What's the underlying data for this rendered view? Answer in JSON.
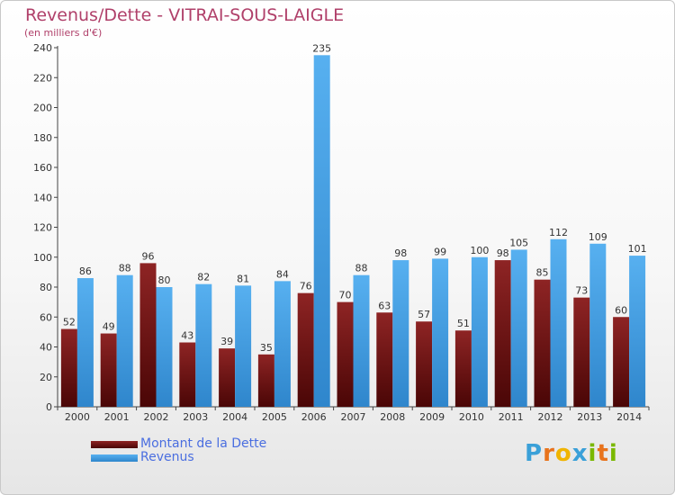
{
  "title": "Revenus/Dette - VITRAI-SOUS-LAIGLE",
  "subtitle": "(en milliers d'€)",
  "legend": {
    "items": [
      {
        "label": "Montant de la Dette",
        "color": "#7a1a1a"
      },
      {
        "label": "Revenus",
        "color": "#4aa3e6"
      }
    ]
  },
  "logo": {
    "letters": [
      {
        "char": "P",
        "color": "#3aa0d8"
      },
      {
        "char": "r",
        "color": "#e8731c"
      },
      {
        "char": "o",
        "color": "#f0b400"
      },
      {
        "char": "x",
        "color": "#3aa0d8"
      },
      {
        "char": "i",
        "color": "#7ab800"
      },
      {
        "char": "t",
        "color": "#e8731c"
      },
      {
        "char": "i",
        "color": "#7ab800"
      }
    ]
  },
  "chart_data": {
    "type": "bar",
    "categories": [
      "2000",
      "2001",
      "2002",
      "2003",
      "2004",
      "2005",
      "2006",
      "2007",
      "2008",
      "2009",
      "2010",
      "2011",
      "2012",
      "2013",
      "2014"
    ],
    "series": [
      {
        "name": "Montant de la Dette",
        "color": "#7a1a1a",
        "values": [
          52,
          49,
          96,
          43,
          39,
          35,
          76,
          70,
          63,
          57,
          51,
          98,
          85,
          73,
          60
        ]
      },
      {
        "name": "Revenus",
        "color": "#4aa3e6",
        "values": [
          86,
          88,
          80,
          82,
          81,
          84,
          235,
          88,
          98,
          99,
          100,
          105,
          112,
          109,
          101
        ]
      }
    ],
    "yticks": [
      0,
      20,
      40,
      60,
      80,
      100,
      120,
      140,
      160,
      180,
      200,
      220,
      240
    ],
    "ylim": [
      0,
      240
    ],
    "grid": false
  }
}
